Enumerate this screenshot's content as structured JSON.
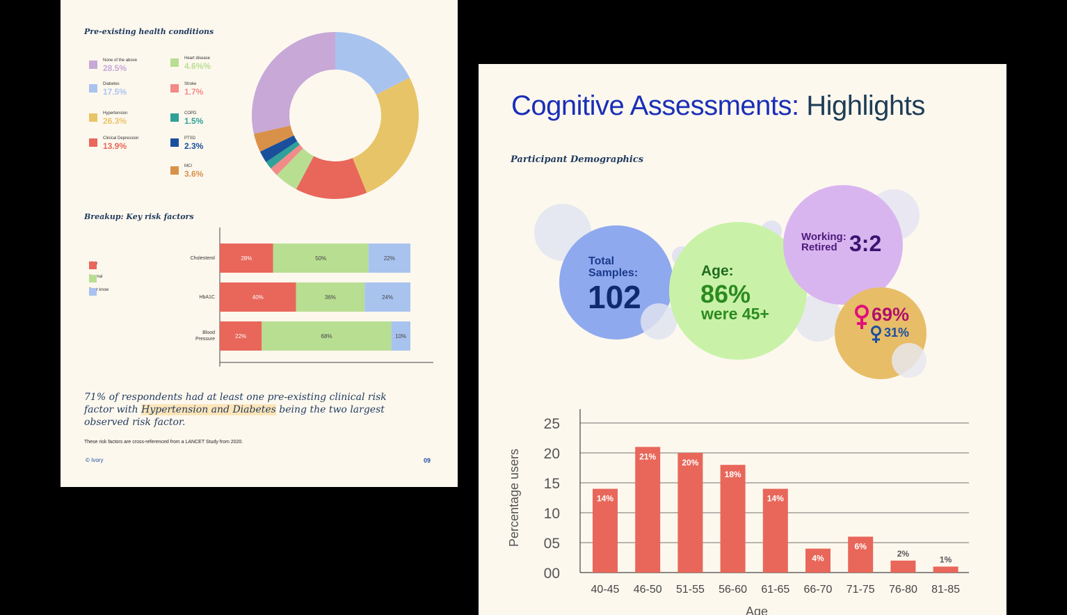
{
  "left_page": {
    "health_title": "Pre-existing health conditions",
    "risk_title": "Breakup: Key risk factors",
    "risk_legend": [
      {
        "label": "High",
        "color": "#e8675a"
      },
      {
        "label": "Normal",
        "color": "#b8de92"
      },
      {
        "label": "Dont know",
        "color": "#a9c3ef"
      }
    ],
    "quote_pre": "71% of respondents had at least one pre-existing clinical risk factor with ",
    "quote_highlight": "Hypertension and Diabetes",
    "quote_post": " being the two largest observed risk factor.",
    "footnote": "These risk factors are cross-referenced from a LANCET Study from 2020.",
    "brand": "© Ivory",
    "page_number": "09"
  },
  "right_page": {
    "title_part1": "Cognitive Assessments:",
    "title_part2": "Highlights",
    "demographics_title": "Participant Demographics",
    "bubbles": {
      "total_label_1": "Total",
      "total_label_2": "Samples:",
      "total_value": "102",
      "age_label": "Age:",
      "age_value": "86%",
      "age_sub": "were 45+",
      "working_label_1": "Working:",
      "working_label_2": "Retired",
      "working_ratio": "3:2",
      "female_icon": "female-symbol-icon",
      "female_pct": "69%",
      "male_icon": "male-symbol-icon",
      "male_pct": "31%"
    }
  },
  "chart_data": [
    {
      "type": "pie",
      "title": "Pre-existing health conditions",
      "categories": [
        "None of the above",
        "Diabetes",
        "Hypertension",
        "Clinical Depression",
        "Heart disease",
        "Stroke",
        "COPD",
        "PTSD",
        "MCI"
      ],
      "labels": [
        "28.5%",
        "17.5%",
        "26.3%",
        "13.9%",
        "4.6%%",
        "1.7%",
        "1.5%",
        "2.3%",
        "3.6%"
      ],
      "values": [
        28.5,
        17.5,
        26.3,
        13.9,
        4.6,
        1.7,
        1.5,
        2.3,
        3.6
      ],
      "colors": [
        "#c7a8d6",
        "#a9c3ef",
        "#e8c468",
        "#e8675a",
        "#b8de92",
        "#f28a8a",
        "#2fa198",
        "#1a4f9c",
        "#d9914a"
      ],
      "donut": true,
      "legend_placement": "left"
    },
    {
      "type": "bar",
      "orientation": "horizontal",
      "stacked": true,
      "title": "Breakup: Key risk factors",
      "categories": [
        "Cholesterol",
        "HbA1C",
        "Blood Pressure"
      ],
      "category_display": [
        [
          "Cholesterol"
        ],
        [
          "HbA1C"
        ],
        [
          "Blood",
          "Pressure"
        ]
      ],
      "series": [
        {
          "name": "High",
          "values": [
            28,
            40,
            22
          ],
          "labels": [
            "28%",
            "40%",
            "22%"
          ],
          "color": "#e8675a"
        },
        {
          "name": "Normal",
          "values": [
            50,
            36,
            68
          ],
          "labels": [
            "50%",
            "36%",
            "68%"
          ],
          "color": "#b8de92"
        },
        {
          "name": "Dont know",
          "values": [
            22,
            24,
            10
          ],
          "labels": [
            "22%",
            "24%",
            "10%"
          ],
          "color": "#a9c3ef"
        }
      ],
      "legend_placement": "left"
    },
    {
      "type": "bar",
      "categories": [
        "40-45",
        "46-50",
        "51-55",
        "56-60",
        "61-65",
        "66-70",
        "71-75",
        "76-80",
        "81-85"
      ],
      "values": [
        14,
        21,
        20,
        18,
        14,
        4,
        6,
        2,
        1
      ],
      "labels": [
        "14%",
        "21%",
        "20%",
        "18%",
        "14%",
        "4%",
        "6%",
        "2%",
        "1%"
      ],
      "ylabel": "Percentage users",
      "xlabel": "Age",
      "ylim": [
        0,
        25
      ],
      "yticks": [
        "00",
        "05",
        "10",
        "15",
        "20",
        "25"
      ],
      "ytick_values": [
        0,
        5,
        10,
        15,
        20,
        25
      ],
      "grid": true,
      "color": "#e8675a"
    }
  ]
}
